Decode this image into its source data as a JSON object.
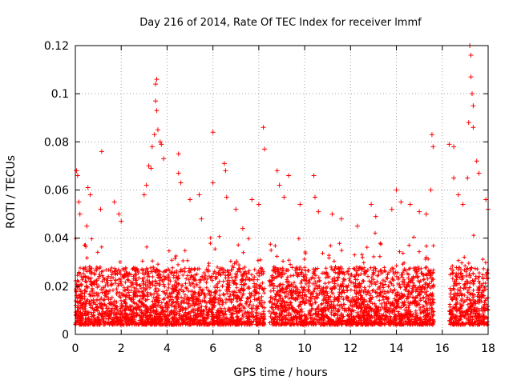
{
  "chart_data": {
    "type": "scatter",
    "title": "Day 216 of 2014, Rate Of TEC Index for receiver lmmf",
    "xlabel": "GPS time / hours",
    "ylabel": "ROTI / TECUs",
    "xlim": [
      0,
      18
    ],
    "ylim": [
      0,
      0.12
    ],
    "x_ticks": [
      0,
      2,
      4,
      6,
      8,
      10,
      12,
      14,
      16,
      18
    ],
    "x_tick_labels": [
      "0",
      "2",
      "4",
      "6",
      "8",
      "10",
      "12",
      "14",
      "16",
      "18"
    ],
    "y_ticks": [
      0,
      0.02,
      0.04,
      0.06,
      0.08,
      0.1,
      0.12
    ],
    "y_tick_labels": [
      "0",
      "0.02",
      "0.04",
      "0.06",
      "0.08",
      "0.1",
      "0.12"
    ],
    "grid": true,
    "marker": "plus",
    "color": "#ff0000",
    "data_gaps_hours": [
      [
        8.25,
        8.45
      ],
      [
        15.65,
        16.3
      ]
    ],
    "series": [
      {
        "name": "ROTI",
        "note": "dense scatter; baseline ~0.005-0.03 TECU throughout, representative peak points listed",
        "points": [
          [
            0.05,
            0.068
          ],
          [
            0.1,
            0.066
          ],
          [
            0.15,
            0.055
          ],
          [
            0.2,
            0.05
          ],
          [
            0.5,
            0.045
          ],
          [
            0.55,
            0.061
          ],
          [
            0.65,
            0.058
          ],
          [
            1.1,
            0.052
          ],
          [
            1.15,
            0.076
          ],
          [
            1.7,
            0.055
          ],
          [
            1.9,
            0.05
          ],
          [
            2.0,
            0.047
          ],
          [
            3.0,
            0.058
          ],
          [
            3.1,
            0.062
          ],
          [
            3.2,
            0.07
          ],
          [
            3.3,
            0.069
          ],
          [
            3.35,
            0.078
          ],
          [
            3.45,
            0.083
          ],
          [
            3.5,
            0.097
          ],
          [
            3.5,
            0.104
          ],
          [
            3.55,
            0.106
          ],
          [
            3.55,
            0.093
          ],
          [
            3.6,
            0.085
          ],
          [
            3.7,
            0.08
          ],
          [
            3.75,
            0.079
          ],
          [
            3.85,
            0.073
          ],
          [
            4.5,
            0.075
          ],
          [
            4.5,
            0.067
          ],
          [
            4.6,
            0.063
          ],
          [
            5.0,
            0.056
          ],
          [
            5.4,
            0.058
          ],
          [
            5.5,
            0.048
          ],
          [
            6.0,
            0.084
          ],
          [
            6.0,
            0.063
          ],
          [
            6.5,
            0.071
          ],
          [
            6.55,
            0.068
          ],
          [
            6.6,
            0.057
          ],
          [
            7.0,
            0.052
          ],
          [
            7.3,
            0.044
          ],
          [
            7.7,
            0.056
          ],
          [
            8.0,
            0.054
          ],
          [
            8.2,
            0.086
          ],
          [
            8.25,
            0.077
          ],
          [
            8.8,
            0.068
          ],
          [
            8.9,
            0.062
          ],
          [
            9.1,
            0.057
          ],
          [
            9.3,
            0.066
          ],
          [
            9.8,
            0.054
          ],
          [
            10.4,
            0.066
          ],
          [
            10.45,
            0.057
          ],
          [
            10.6,
            0.051
          ],
          [
            11.2,
            0.05
          ],
          [
            11.6,
            0.048
          ],
          [
            12.3,
            0.045
          ],
          [
            12.9,
            0.054
          ],
          [
            13.1,
            0.049
          ],
          [
            13.8,
            0.052
          ],
          [
            14.0,
            0.06
          ],
          [
            14.2,
            0.055
          ],
          [
            14.6,
            0.054
          ],
          [
            15.0,
            0.051
          ],
          [
            15.3,
            0.05
          ],
          [
            15.5,
            0.06
          ],
          [
            15.55,
            0.083
          ],
          [
            15.6,
            0.078
          ],
          [
            16.3,
            0.079
          ],
          [
            16.5,
            0.078
          ],
          [
            16.5,
            0.065
          ],
          [
            16.7,
            0.058
          ],
          [
            16.9,
            0.054
          ],
          [
            17.1,
            0.065
          ],
          [
            17.15,
            0.088
          ],
          [
            17.2,
            0.12
          ],
          [
            17.25,
            0.116
          ],
          [
            17.25,
            0.107
          ],
          [
            17.3,
            0.1
          ],
          [
            17.35,
            0.095
          ],
          [
            17.35,
            0.086
          ],
          [
            17.5,
            0.072
          ],
          [
            17.6,
            0.067
          ],
          [
            17.9,
            0.056
          ],
          [
            18.0,
            0.052
          ]
        ]
      }
    ]
  }
}
